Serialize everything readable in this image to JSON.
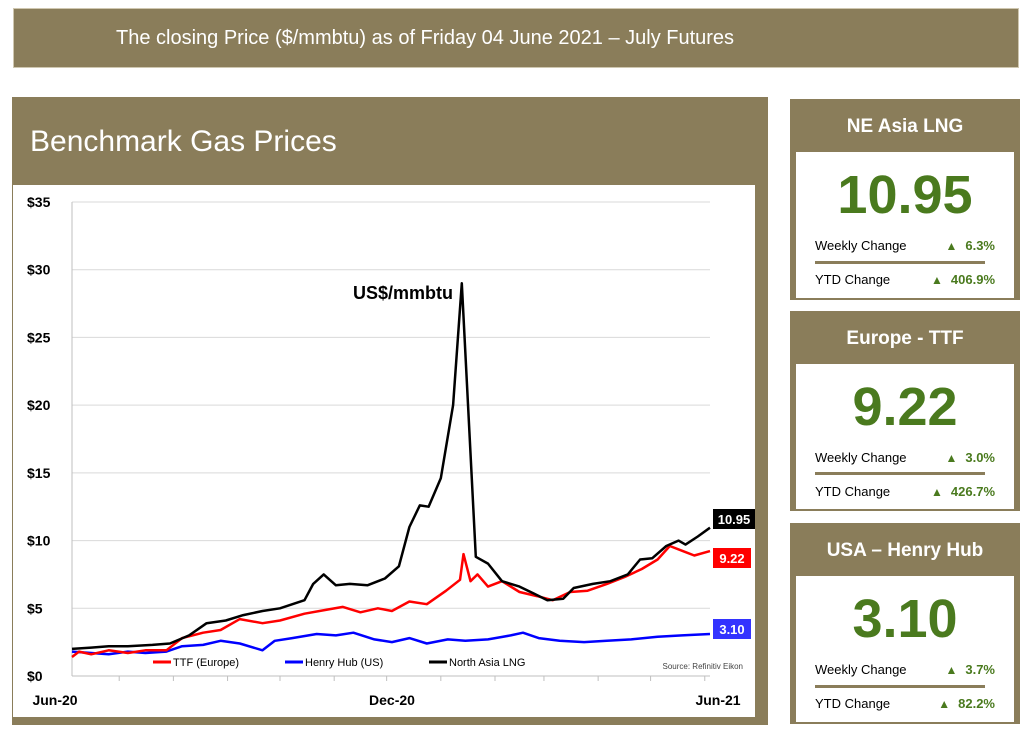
{
  "banner": {
    "text": "The closing Price ($/mmbtu) as of  Friday 04 June 2021 – July Futures"
  },
  "panel": {
    "title": "Benchmark Gas Prices"
  },
  "colors": {
    "panel": "#8a7d5a",
    "value_green": "#4a7a1e",
    "ttf": "#ff0000",
    "henry_hub": "#0000ff",
    "north_asia_lng": "#000000"
  },
  "chart_data": {
    "type": "line",
    "unit_label": "US$/mmbtu",
    "source": "Source: Refinitiv Eikon",
    "ylim": [
      0,
      35
    ],
    "y_ticks": [
      "$0",
      "$5",
      "$10",
      "$15",
      "$20",
      "$25",
      "$30",
      "$35"
    ],
    "x_ticks": [
      "Jun-20",
      "Dec-20",
      "Jun-21"
    ],
    "x_range": [
      "2020-06-04",
      "2021-06-04"
    ],
    "grid": "horizontal",
    "legend_position": "bottom",
    "series": [
      {
        "name": "TTF (Europe)",
        "color": "#ff0000",
        "last_label": "9.22",
        "points": [
          [
            "2020-06-04",
            1.4
          ],
          [
            "2020-06-08",
            1.8
          ],
          [
            "2020-06-15",
            1.6
          ],
          [
            "2020-06-25",
            1.9
          ],
          [
            "2020-07-06",
            1.7
          ],
          [
            "2020-07-16",
            1.9
          ],
          [
            "2020-07-28",
            1.9
          ],
          [
            "2020-08-06",
            2.8
          ],
          [
            "2020-08-18",
            3.2
          ],
          [
            "2020-08-28",
            3.4
          ],
          [
            "2020-09-08",
            4.2
          ],
          [
            "2020-09-21",
            3.9
          ],
          [
            "2020-10-01",
            4.1
          ],
          [
            "2020-10-15",
            4.6
          ],
          [
            "2020-10-28",
            4.9
          ],
          [
            "2020-11-06",
            5.1
          ],
          [
            "2020-11-16",
            4.7
          ],
          [
            "2020-11-26",
            5.0
          ],
          [
            "2020-12-04",
            4.8
          ],
          [
            "2020-12-14",
            5.5
          ],
          [
            "2020-12-24",
            5.3
          ],
          [
            "2021-01-04",
            6.3
          ],
          [
            "2021-01-12",
            7.1
          ],
          [
            "2021-01-14",
            9.0
          ],
          [
            "2021-01-18",
            7.0
          ],
          [
            "2021-01-22",
            7.5
          ],
          [
            "2021-01-28",
            6.6
          ],
          [
            "2021-02-05",
            7.0
          ],
          [
            "2021-02-15",
            6.2
          ],
          [
            "2021-02-25",
            5.9
          ],
          [
            "2021-03-06",
            5.6
          ],
          [
            "2021-03-16",
            6.2
          ],
          [
            "2021-03-26",
            6.3
          ],
          [
            "2021-04-06",
            6.8
          ],
          [
            "2021-04-16",
            7.3
          ],
          [
            "2021-04-26",
            7.9
          ],
          [
            "2021-05-05",
            8.6
          ],
          [
            "2021-05-12",
            9.6
          ],
          [
            "2021-05-20",
            9.2
          ],
          [
            "2021-05-26",
            8.9
          ],
          [
            "2021-06-04",
            9.22
          ]
        ]
      },
      {
        "name": "Henry Hub (US)",
        "color": "#0000ff",
        "last_label": "3.10",
        "points": [
          [
            "2020-06-04",
            1.8
          ],
          [
            "2020-06-15",
            1.7
          ],
          [
            "2020-06-25",
            1.6
          ],
          [
            "2020-07-06",
            1.8
          ],
          [
            "2020-07-16",
            1.7
          ],
          [
            "2020-07-28",
            1.8
          ],
          [
            "2020-08-06",
            2.2
          ],
          [
            "2020-08-18",
            2.3
          ],
          [
            "2020-08-28",
            2.6
          ],
          [
            "2020-09-08",
            2.4
          ],
          [
            "2020-09-21",
            1.9
          ],
          [
            "2020-09-28",
            2.6
          ],
          [
            "2020-10-08",
            2.8
          ],
          [
            "2020-10-22",
            3.1
          ],
          [
            "2020-11-02",
            3.0
          ],
          [
            "2020-11-12",
            3.2
          ],
          [
            "2020-11-24",
            2.7
          ],
          [
            "2020-12-04",
            2.5
          ],
          [
            "2020-12-14",
            2.8
          ],
          [
            "2020-12-24",
            2.4
          ],
          [
            "2021-01-05",
            2.7
          ],
          [
            "2021-01-15",
            2.6
          ],
          [
            "2021-01-28",
            2.7
          ],
          [
            "2021-02-10",
            3.0
          ],
          [
            "2021-02-17",
            3.2
          ],
          [
            "2021-02-26",
            2.8
          ],
          [
            "2021-03-10",
            2.6
          ],
          [
            "2021-03-24",
            2.5
          ],
          [
            "2021-04-06",
            2.6
          ],
          [
            "2021-04-20",
            2.7
          ],
          [
            "2021-05-05",
            2.9
          ],
          [
            "2021-05-19",
            3.0
          ],
          [
            "2021-06-04",
            3.1
          ]
        ]
      },
      {
        "name": "North Asia LNG",
        "color": "#000000",
        "last_label": "10.95",
        "points": [
          [
            "2020-06-04",
            2.0
          ],
          [
            "2020-06-15",
            2.1
          ],
          [
            "2020-06-25",
            2.2
          ],
          [
            "2020-07-06",
            2.2
          ],
          [
            "2020-07-20",
            2.3
          ],
          [
            "2020-07-30",
            2.4
          ],
          [
            "2020-08-10",
            3.0
          ],
          [
            "2020-08-20",
            3.9
          ],
          [
            "2020-08-31",
            4.1
          ],
          [
            "2020-09-10",
            4.5
          ],
          [
            "2020-09-21",
            4.8
          ],
          [
            "2020-10-01",
            5.0
          ],
          [
            "2020-10-15",
            5.6
          ],
          [
            "2020-10-20",
            6.8
          ],
          [
            "2020-10-26",
            7.5
          ],
          [
            "2020-11-02",
            6.7
          ],
          [
            "2020-11-10",
            6.8
          ],
          [
            "2020-11-20",
            6.7
          ],
          [
            "2020-11-30",
            7.2
          ],
          [
            "2020-12-08",
            8.1
          ],
          [
            "2020-12-14",
            11.0
          ],
          [
            "2020-12-20",
            12.6
          ],
          [
            "2020-12-25",
            12.5
          ],
          [
            "2021-01-01",
            14.6
          ],
          [
            "2021-01-08",
            20.0
          ],
          [
            "2021-01-13",
            29.0
          ],
          [
            "2021-01-21",
            8.8
          ],
          [
            "2021-01-28",
            8.3
          ],
          [
            "2021-02-05",
            7.0
          ],
          [
            "2021-02-15",
            6.6
          ],
          [
            "2021-02-23",
            6.1
          ],
          [
            "2021-03-03",
            5.6
          ],
          [
            "2021-03-12",
            5.7
          ],
          [
            "2021-03-18",
            6.5
          ],
          [
            "2021-03-29",
            6.8
          ],
          [
            "2021-04-08",
            7.0
          ],
          [
            "2021-04-18",
            7.5
          ],
          [
            "2021-04-25",
            8.6
          ],
          [
            "2021-05-02",
            8.7
          ],
          [
            "2021-05-10",
            9.6
          ],
          [
            "2021-05-17",
            10.0
          ],
          [
            "2021-05-21",
            9.7
          ],
          [
            "2021-05-28",
            10.3
          ],
          [
            "2021-06-04",
            10.95
          ]
        ]
      }
    ]
  },
  "cards": [
    {
      "title": "NE Asia LNG",
      "value": "10.95",
      "weekly_label": "Weekly Change",
      "weekly_value": "6.3%",
      "ytd_label": "YTD Change",
      "ytd_value": "406.9%"
    },
    {
      "title": "Europe - TTF",
      "value": "9.22",
      "weekly_label": "Weekly Change",
      "weekly_value": "3.0%",
      "ytd_label": "YTD Change",
      "ytd_value": "426.7%"
    },
    {
      "title": "USA – Henry Hub",
      "value": "3.10",
      "weekly_label": "Weekly Change",
      "weekly_value": "3.7%",
      "ytd_label": "YTD Change",
      "ytd_value": "82.2%"
    }
  ],
  "icons": {
    "up": "triangle-up-icon"
  }
}
